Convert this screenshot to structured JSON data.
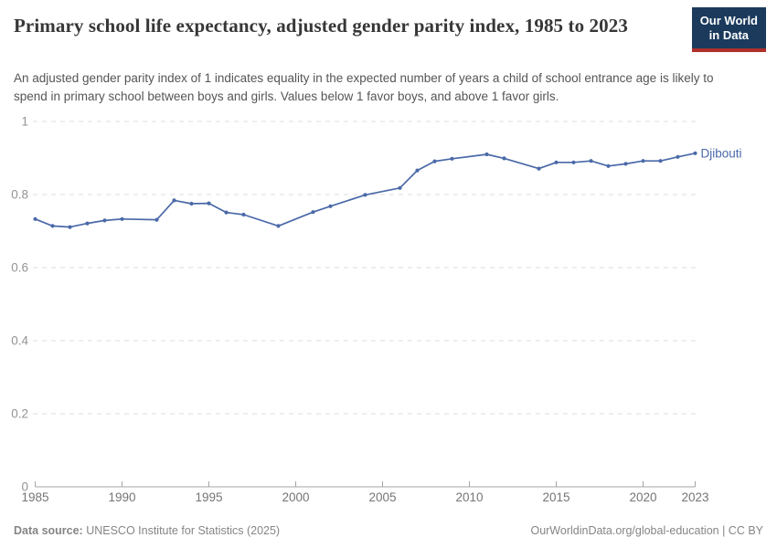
{
  "header": {
    "title": "Primary school life expectancy, adjusted gender parity index, 1985 to 2023",
    "subtitle": "An adjusted gender parity index of 1 indicates equality in the expected number of years a child of school entrance age is likely to spend in primary school between boys and girls. Values below 1 favor boys, and above 1 favor girls.",
    "logo": {
      "line1": "Our World",
      "line2": "in Data",
      "bg_color": "#1b3a5c",
      "accent_color": "#b0302a"
    }
  },
  "chart_data": {
    "type": "line",
    "title": "Primary school life expectancy, adjusted gender parity index, 1985 to 2023",
    "series": [
      {
        "name": "Djibouti",
        "color": "#4a69a8",
        "points": [
          [
            1985,
            0.733
          ],
          [
            1986,
            0.714
          ],
          [
            1987,
            0.711
          ],
          [
            1988,
            0.721
          ],
          [
            1989,
            0.729
          ],
          [
            1990,
            0.733
          ],
          [
            1992,
            0.731
          ],
          [
            1993,
            0.784
          ],
          [
            1994,
            0.775
          ],
          [
            1995,
            0.776
          ],
          [
            1996,
            0.751
          ],
          [
            1997,
            0.745
          ],
          [
            1999,
            0.714
          ],
          [
            2001,
            0.752
          ],
          [
            2002,
            0.768
          ],
          [
            2004,
            0.799
          ],
          [
            2006,
            0.818
          ],
          [
            2007,
            0.866
          ],
          [
            2008,
            0.891
          ],
          [
            2009,
            0.898
          ],
          [
            2011,
            0.91
          ],
          [
            2012,
            0.899
          ],
          [
            2014,
            0.871
          ],
          [
            2015,
            0.888
          ],
          [
            2016,
            0.888
          ],
          [
            2017,
            0.892
          ],
          [
            2018,
            0.878
          ],
          [
            2019,
            0.884
          ],
          [
            2020,
            0.892
          ],
          [
            2021,
            0.892
          ],
          [
            2022,
            0.903
          ],
          [
            2023,
            0.913
          ]
        ]
      }
    ],
    "xlabel": "",
    "ylabel": "",
    "xlim": [
      1985,
      2023
    ],
    "ylim": [
      0,
      1
    ],
    "x_ticks": [
      1985,
      1990,
      1995,
      2000,
      2005,
      2010,
      2015,
      2020,
      2023
    ],
    "y_ticks": [
      0,
      0.2,
      0.4,
      0.6,
      0.8,
      1
    ],
    "y_tick_labels": [
      "0",
      "0.2",
      "0.4",
      "0.6",
      "0.8",
      "1"
    ],
    "grid": true,
    "gridline_color": "#dcdcdc",
    "axis_color": "#a5a5a5",
    "x_tick_label_color": "#757575",
    "y_tick_label_color": "#949494",
    "legend_position": "end-of-line-label"
  },
  "footer": {
    "datasource_label": "Data source:",
    "datasource_text": " UNESCO Institute for Statistics (2025)",
    "right_text": "OurWorldinData.org/global-education | CC BY"
  }
}
